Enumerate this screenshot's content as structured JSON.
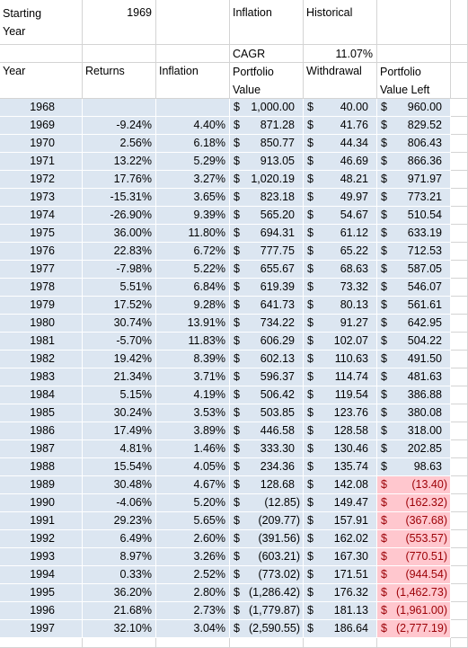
{
  "header": {
    "starting_year_label": "Starting Year",
    "starting_year": "1969",
    "inflation_label": "Inflation",
    "historical_label": "Historical",
    "cagr_label": "CAGR",
    "cagr": "11.07%"
  },
  "table": {
    "columns": [
      "Year",
      "Returns",
      "Inflation",
      "Portfolio Value",
      "Withdrawal",
      "Portfolio Value Left"
    ],
    "currency_symbol": "$",
    "rows": [
      [
        "1968",
        null,
        null,
        "1,000.00",
        "40.00",
        "960.00"
      ],
      [
        "1969",
        "-9.24%",
        "4.40%",
        "871.28",
        "41.76",
        "829.52"
      ],
      [
        "1970",
        "2.56%",
        "6.18%",
        "850.77",
        "44.34",
        "806.43"
      ],
      [
        "1971",
        "13.22%",
        "5.29%",
        "913.05",
        "46.69",
        "866.36"
      ],
      [
        "1972",
        "17.76%",
        "3.27%",
        "1,020.19",
        "48.21",
        "971.97"
      ],
      [
        "1973",
        "-15.31%",
        "3.65%",
        "823.18",
        "49.97",
        "773.21"
      ],
      [
        "1974",
        "-26.90%",
        "9.39%",
        "565.20",
        "54.67",
        "510.54"
      ],
      [
        "1975",
        "36.00%",
        "11.80%",
        "694.31",
        "61.12",
        "633.19"
      ],
      [
        "1976",
        "22.83%",
        "6.72%",
        "777.75",
        "65.22",
        "712.53"
      ],
      [
        "1977",
        "-7.98%",
        "5.22%",
        "655.67",
        "68.63",
        "587.05"
      ],
      [
        "1978",
        "5.51%",
        "6.84%",
        "619.39",
        "73.32",
        "546.07"
      ],
      [
        "1979",
        "17.52%",
        "9.28%",
        "641.73",
        "80.13",
        "561.61"
      ],
      [
        "1980",
        "30.74%",
        "13.91%",
        "734.22",
        "91.27",
        "642.95"
      ],
      [
        "1981",
        "-5.70%",
        "11.83%",
        "606.29",
        "102.07",
        "504.22"
      ],
      [
        "1982",
        "19.42%",
        "8.39%",
        "602.13",
        "110.63",
        "491.50"
      ],
      [
        "1983",
        "21.34%",
        "3.71%",
        "596.37",
        "114.74",
        "481.63"
      ],
      [
        "1984",
        "5.15%",
        "4.19%",
        "506.42",
        "119.54",
        "386.88"
      ],
      [
        "1985",
        "30.24%",
        "3.53%",
        "503.85",
        "123.76",
        "380.08"
      ],
      [
        "1986",
        "17.49%",
        "3.89%",
        "446.58",
        "128.58",
        "318.00"
      ],
      [
        "1987",
        "4.81%",
        "1.46%",
        "333.30",
        "130.46",
        "202.85"
      ],
      [
        "1988",
        "15.54%",
        "4.05%",
        "234.36",
        "135.74",
        "98.63"
      ],
      [
        "1989",
        "30.48%",
        "4.67%",
        "128.68",
        "142.08",
        "(13.40)"
      ],
      [
        "1990",
        "-4.06%",
        "5.20%",
        "(12.85)",
        "149.47",
        "(162.32)"
      ],
      [
        "1991",
        "29.23%",
        "5.65%",
        "(209.77)",
        "157.91",
        "(367.68)"
      ],
      [
        "1992",
        "6.49%",
        "2.60%",
        "(391.56)",
        "162.02",
        "(553.57)"
      ],
      [
        "1993",
        "8.97%",
        "3.26%",
        "(603.21)",
        "167.30",
        "(770.51)"
      ],
      [
        "1994",
        "0.33%",
        "2.52%",
        "(773.02)",
        "171.51",
        "(944.54)"
      ],
      [
        "1995",
        "36.20%",
        "2.80%",
        "(1,286.42)",
        "176.32",
        "(1,462.73)"
      ],
      [
        "1996",
        "21.68%",
        "2.73%",
        "(1,779.87)",
        "181.13",
        "(1,961.00)"
      ],
      [
        "1997",
        "32.10%",
        "3.04%",
        "(2,590.55)",
        "186.64",
        "(2,777.19)"
      ]
    ]
  }
}
